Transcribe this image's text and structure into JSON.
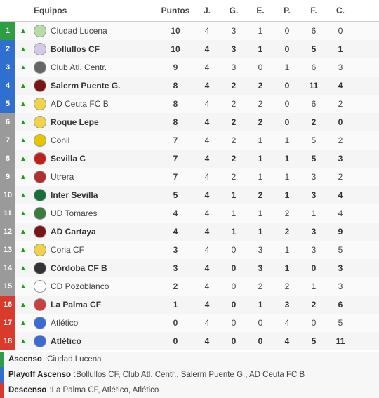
{
  "headers": {
    "team": "Equipos",
    "pts": "Puntos",
    "j": "J.",
    "g": "G.",
    "e": "E.",
    "p": "P.",
    "f": "F.",
    "c": "C."
  },
  "zone_colors": {
    "ascenso": "#2e9e44",
    "playoff": "#2f6fd0",
    "mid": "#9a9a9a",
    "descenso": "#d93a2b"
  },
  "stripe": {
    "even": "#f5f5f5",
    "odd": "#fafafa"
  },
  "crest_colors": [
    "#b8dca8",
    "#d6c8e8",
    "#666666",
    "#7a1515",
    "#f2d24a",
    "#f2d24a",
    "#e8c400",
    "#c0201a",
    "#b03030",
    "#1a6e3a",
    "#3a7a3a",
    "#7a1515",
    "#f2d24a",
    "#333333",
    "#ffffff",
    "#c94040",
    "#3a6bd0",
    "#3a6bd0"
  ],
  "rows": [
    {
      "pos": 1,
      "arrow": "up",
      "name": "Ciudad Lucena",
      "pts": 10,
      "j": 4,
      "g": 3,
      "e": 1,
      "p": 0,
      "f": 6,
      "c": 0,
      "zone": "ascenso"
    },
    {
      "pos": 2,
      "arrow": "up",
      "name": "Bollullos CF",
      "pts": 10,
      "j": 4,
      "g": 3,
      "e": 1,
      "p": 0,
      "f": 5,
      "c": 1,
      "zone": "playoff"
    },
    {
      "pos": 3,
      "arrow": "up",
      "name": "Club Atl. Centr.",
      "pts": 9,
      "j": 4,
      "g": 3,
      "e": 0,
      "p": 1,
      "f": 6,
      "c": 3,
      "zone": "playoff"
    },
    {
      "pos": 4,
      "arrow": "up",
      "name": "Salerm Puente G.",
      "pts": 8,
      "j": 4,
      "g": 2,
      "e": 2,
      "p": 0,
      "f": 11,
      "c": 4,
      "zone": "playoff"
    },
    {
      "pos": 5,
      "arrow": "up",
      "name": "AD Ceuta FC B",
      "pts": 8,
      "j": 4,
      "g": 2,
      "e": 2,
      "p": 0,
      "f": 6,
      "c": 2,
      "zone": "playoff"
    },
    {
      "pos": 6,
      "arrow": "up",
      "name": "Roque Lepe",
      "pts": 8,
      "j": 4,
      "g": 2,
      "e": 2,
      "p": 0,
      "f": 2,
      "c": 0,
      "zone": "mid"
    },
    {
      "pos": 7,
      "arrow": "up",
      "name": "Conil",
      "pts": 7,
      "j": 4,
      "g": 2,
      "e": 1,
      "p": 1,
      "f": 5,
      "c": 2,
      "zone": "mid"
    },
    {
      "pos": 8,
      "arrow": "up",
      "name": "Sevilla C",
      "pts": 7,
      "j": 4,
      "g": 2,
      "e": 1,
      "p": 1,
      "f": 5,
      "c": 3,
      "zone": "mid"
    },
    {
      "pos": 9,
      "arrow": "up",
      "name": "Utrera",
      "pts": 7,
      "j": 4,
      "g": 2,
      "e": 1,
      "p": 1,
      "f": 3,
      "c": 2,
      "zone": "mid"
    },
    {
      "pos": 10,
      "arrow": "up",
      "name": "Inter Sevilla",
      "pts": 5,
      "j": 4,
      "g": 1,
      "e": 2,
      "p": 1,
      "f": 3,
      "c": 4,
      "zone": "mid"
    },
    {
      "pos": 11,
      "arrow": "up",
      "name": "UD Tomares",
      "pts": 4,
      "j": 4,
      "g": 1,
      "e": 1,
      "p": 2,
      "f": 1,
      "c": 4,
      "zone": "mid"
    },
    {
      "pos": 12,
      "arrow": "up",
      "name": "AD Cartaya",
      "pts": 4,
      "j": 4,
      "g": 1,
      "e": 1,
      "p": 2,
      "f": 3,
      "c": 9,
      "zone": "mid"
    },
    {
      "pos": 13,
      "arrow": "up",
      "name": "Coria CF",
      "pts": 3,
      "j": 4,
      "g": 0,
      "e": 3,
      "p": 1,
      "f": 3,
      "c": 5,
      "zone": "mid"
    },
    {
      "pos": 14,
      "arrow": "up",
      "name": "Córdoba CF B",
      "pts": 3,
      "j": 4,
      "g": 0,
      "e": 3,
      "p": 1,
      "f": 0,
      "c": 3,
      "zone": "mid"
    },
    {
      "pos": 15,
      "arrow": "up",
      "name": "CD Pozoblanco",
      "pts": 2,
      "j": 4,
      "g": 0,
      "e": 2,
      "p": 2,
      "f": 1,
      "c": 3,
      "zone": "mid"
    },
    {
      "pos": 16,
      "arrow": "up",
      "name": "La Palma CF",
      "pts": 1,
      "j": 4,
      "g": 0,
      "e": 1,
      "p": 3,
      "f": 2,
      "c": 6,
      "zone": "descenso"
    },
    {
      "pos": 17,
      "arrow": "up",
      "name": "Atlético",
      "pts": 0,
      "j": 4,
      "g": 0,
      "e": 0,
      "p": 4,
      "f": 0,
      "c": 5,
      "zone": "descenso"
    },
    {
      "pos": 18,
      "arrow": "up",
      "name": "Atlético",
      "pts": 0,
      "j": 4,
      "g": 0,
      "e": 0,
      "p": 4,
      "f": 5,
      "c": 11,
      "zone": "descenso"
    }
  ],
  "footer": [
    {
      "label": "Ascenso",
      "teams": "Ciudad Lucena",
      "color": "#2e9e44"
    },
    {
      "label": "Playoff Ascenso",
      "teams": "Bollullos CF, Club Atl. Centr., Salerm Puente G., AD Ceuta FC B",
      "color": "#2f6fd0"
    },
    {
      "label": "Descenso",
      "teams": "La Palma CF, Atlético, Atlético",
      "color": "#d93a2b"
    }
  ]
}
